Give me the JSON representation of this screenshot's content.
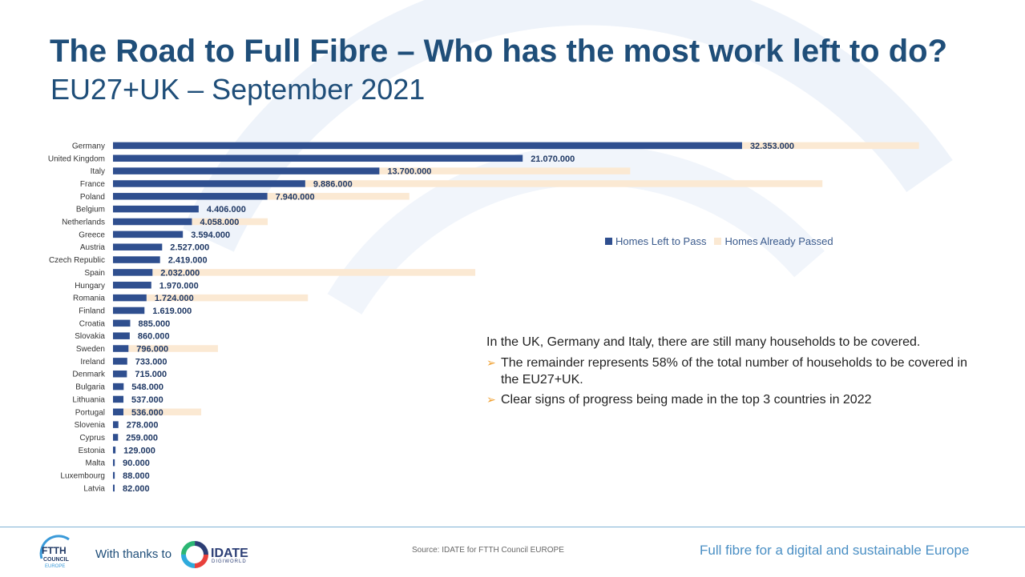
{
  "title": "The Road to Full Fibre – Who has the most work left to do?",
  "subtitle": "EU27+UK – September 2021",
  "legend": {
    "left_to_pass": "Homes Left to Pass",
    "already_passed": "Homes  Already Passed"
  },
  "colors": {
    "left_to_pass": "#2f4f8f",
    "already_passed": "#fbe9d3",
    "title": "#1f4e79",
    "accent": "#f0a030"
  },
  "chart_data": {
    "type": "bar",
    "orientation": "horizontal",
    "stacked": true,
    "categories": [
      "Germany",
      "United Kingdom",
      "Italy",
      "France",
      "Poland",
      "Belgium",
      "Netherlands",
      "Greece",
      "Austria",
      "Czech Republic",
      "Spain",
      "Hungary",
      "Romania",
      "Finland",
      "Croatia",
      "Slovakia",
      "Sweden",
      "Ireland",
      "Denmark",
      "Bulgaria",
      "Lithuania",
      "Portugal",
      "Slovenia",
      "Cyprus",
      "Estonia",
      "Malta",
      "Luxembourg",
      "Latvia"
    ],
    "value_labels": [
      "32.353.000",
      "21.070.000",
      "13.700.000",
      "9.886.000",
      "7.940.000",
      "4.406.000",
      "4.058.000",
      "3.594.000",
      "2.527.000",
      "2.419.000",
      "2.032.000",
      "1.970.000",
      "1.724.000",
      "1.619.000",
      "885.000",
      "860.000",
      "796.000",
      "733.000",
      "715.000",
      "548.000",
      "537.000",
      "536.000",
      "278.000",
      "259.000",
      "129.000",
      "90.000",
      "88.000",
      "82.000"
    ],
    "series": [
      {
        "name": "Homes Left to Pass",
        "values": [
          32353000,
          21070000,
          13700000,
          9886000,
          7940000,
          4406000,
          4058000,
          3594000,
          2527000,
          2419000,
          2032000,
          1970000,
          1724000,
          1619000,
          885000,
          860000,
          796000,
          733000,
          715000,
          548000,
          537000,
          536000,
          278000,
          259000,
          129000,
          90000,
          88000,
          82000
        ]
      },
      {
        "name": "Homes  Already Passed",
        "values": [
          9100000,
          0,
          12900000,
          26600000,
          7300000,
          0,
          3900000,
          0,
          0,
          0,
          16600000,
          0,
          8300000,
          0,
          0,
          0,
          4600000,
          0,
          0,
          0,
          0,
          4000000,
          0,
          0,
          0,
          0,
          0,
          0
        ]
      }
    ],
    "xlim": [
      0,
      42000000
    ],
    "grid": false,
    "legend_position": "right"
  },
  "notes": {
    "intro": "In the UK, Germany and Italy, there are still many households to be covered.",
    "bullets": [
      "The remainder represents 58% of the total number of households to be covered in the EU27+UK.",
      "Clear signs of progress being made in the top 3 countries in 2022"
    ]
  },
  "footer": {
    "thanks": "With thanks to",
    "ftth_logo_text": "FTTH COUNCIL EUROPE",
    "idate_logo_text": "IDATE",
    "idate_logo_sub": "DIGIWORLD",
    "source": "Source: IDATE for FTTH Council EUROPE",
    "tagline": "Full fibre for a digital and sustainable Europe"
  }
}
